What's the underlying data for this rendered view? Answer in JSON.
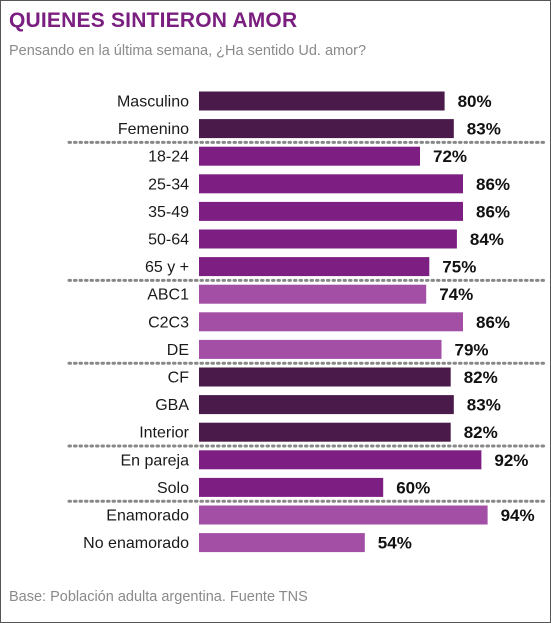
{
  "title": "QUIENES SINTIERON AMOR",
  "subtitle": "Pensando en la última semana, ¿Ha sentido Ud. amor?",
  "footer": "Base: Población adulta argentina. Fuente TNS",
  "colors": {
    "dark": "#4a1a4a",
    "purple": "#7d1f82",
    "light": "#a24fa5",
    "title": "#7a1f7f",
    "separator": "#888888"
  },
  "chart_data": {
    "type": "bar",
    "orientation": "horizontal",
    "unit": "%",
    "categories": [
      "Masculino",
      "Femenino",
      "18-24",
      "25-34",
      "35-49",
      "50-64",
      "65 y +",
      "ABC1",
      "C2C3",
      "DE",
      "CF",
      "GBA",
      "Interior",
      "En pareja",
      "Solo",
      "Enamorado",
      "No enamorado"
    ],
    "values": [
      80,
      83,
      72,
      86,
      86,
      84,
      75,
      74,
      86,
      79,
      82,
      83,
      82,
      92,
      60,
      94,
      54
    ],
    "labels": [
      "80%",
      "83%",
      "72%",
      "86%",
      "86%",
      "84%",
      "75%",
      "74%",
      "86%",
      "79%",
      "82%",
      "83%",
      "82%",
      "92%",
      "60%",
      "94%",
      "54%"
    ],
    "bar_colors": [
      "dark",
      "dark",
      "purple",
      "purple",
      "purple",
      "purple",
      "purple",
      "light",
      "light",
      "light",
      "dark",
      "dark",
      "dark",
      "purple",
      "purple",
      "light",
      "light"
    ],
    "group_breaks_after": [
      1,
      6,
      9,
      12,
      14
    ],
    "xlim": [
      0,
      100
    ],
    "grid": false,
    "title": "QUIENES SINTIERON AMOR"
  }
}
